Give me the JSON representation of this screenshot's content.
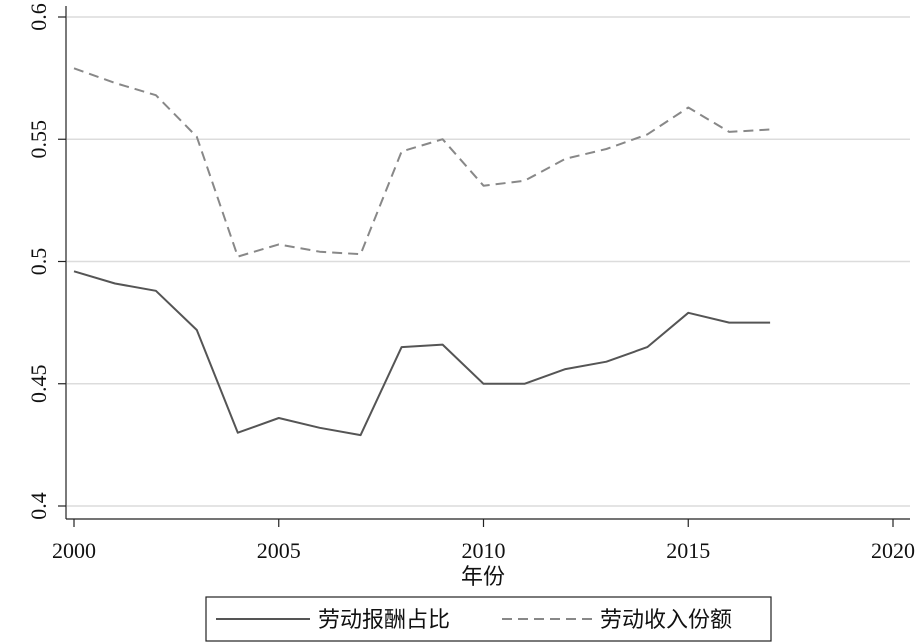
{
  "chart_data": {
    "type": "line",
    "xlabel": "年份",
    "ylabel": "",
    "xlim": [
      2000,
      2020
    ],
    "ylim": [
      0.4,
      0.6
    ],
    "x_ticks": [
      2000,
      2005,
      2010,
      2015,
      2020
    ],
    "y_ticks": [
      0.4,
      0.45,
      0.5,
      0.55,
      0.6
    ],
    "x_tick_labels": [
      "2000",
      "2005",
      "2010",
      "2015",
      "2020"
    ],
    "y_tick_labels": [
      "0.4",
      "0.45",
      "0.5",
      "0.55",
      "0.6"
    ],
    "grid": "horizontal",
    "legend_position": "bottom",
    "x": [
      2000,
      2001,
      2002,
      2003,
      2004,
      2005,
      2006,
      2007,
      2008,
      2009,
      2010,
      2011,
      2012,
      2013,
      2014,
      2015,
      2016,
      2017
    ],
    "series": [
      {
        "name": "劳动报酬占比",
        "style": "solid",
        "color": "#555555",
        "values": [
          0.496,
          0.491,
          0.488,
          0.472,
          0.43,
          0.436,
          0.432,
          0.429,
          0.465,
          0.466,
          0.45,
          0.45,
          0.456,
          0.459,
          0.465,
          0.479,
          0.475,
          0.475
        ]
      },
      {
        "name": "劳动收入份额",
        "style": "dashed",
        "color": "#888888",
        "values": [
          0.579,
          0.573,
          0.568,
          0.551,
          0.502,
          0.507,
          0.504,
          0.503,
          0.545,
          0.55,
          0.531,
          0.533,
          0.542,
          0.546,
          0.552,
          0.563,
          0.553,
          0.554
        ]
      }
    ]
  }
}
